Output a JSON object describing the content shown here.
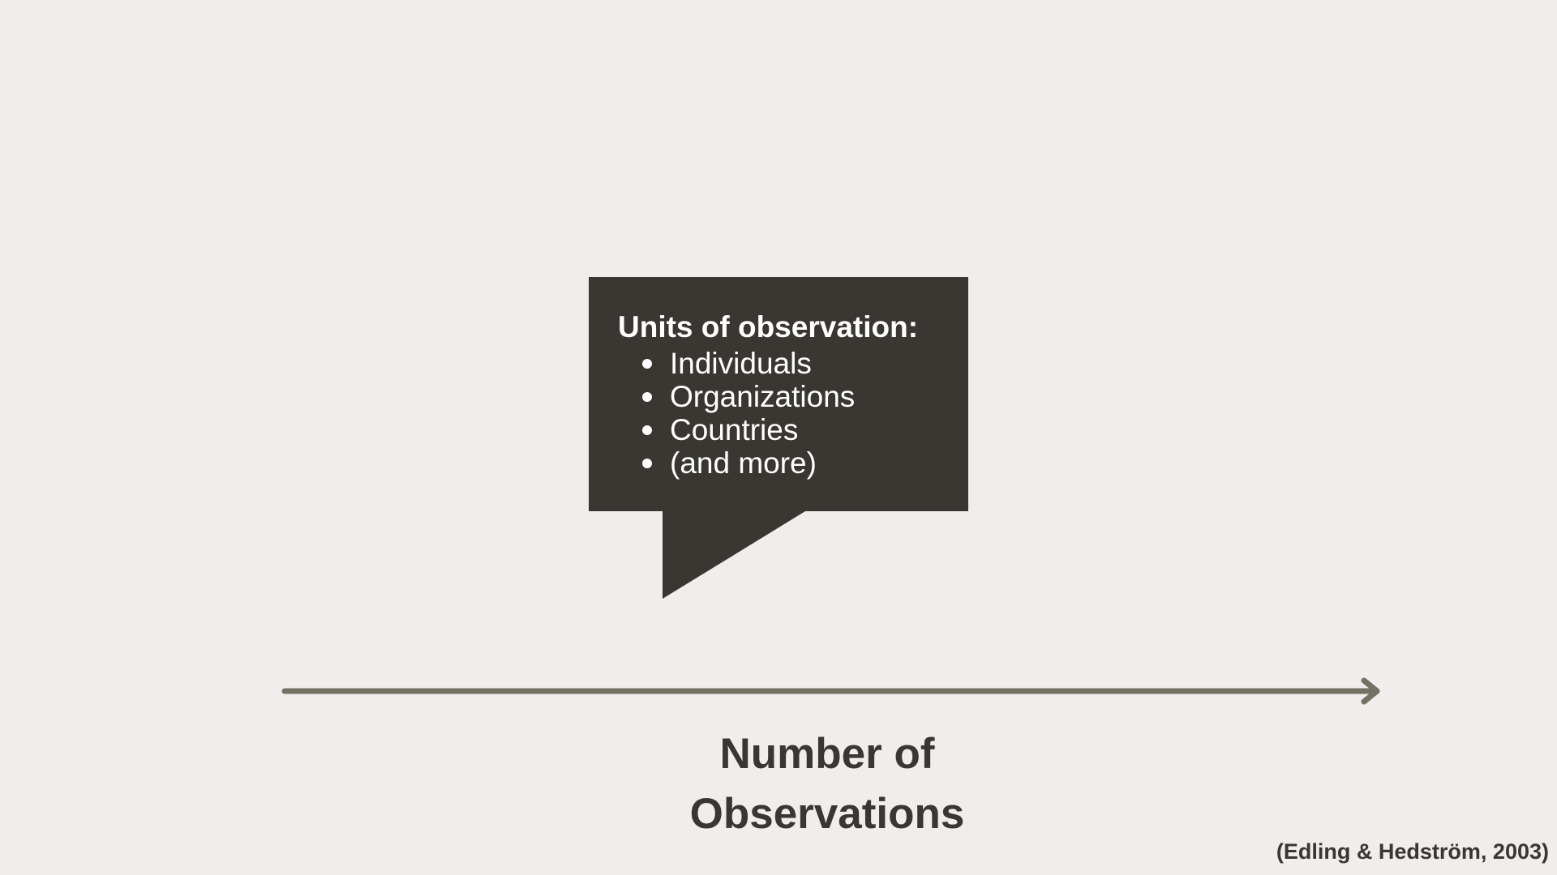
{
  "callout": {
    "heading": "Units of observation:",
    "items": [
      {
        "label": "Individuals"
      },
      {
        "label": "Organizations"
      },
      {
        "label": "Countries"
      },
      {
        "label": "(and more)"
      }
    ]
  },
  "axis": {
    "label_line1": "Number of",
    "label_line2": "Observations"
  },
  "citation": "(Edling & Hedström, 2003)",
  "colors": {
    "background": "#efeeec",
    "callout_fill": "#3a3632",
    "arrow": "#737264",
    "text_dark": "#3a3632"
  }
}
